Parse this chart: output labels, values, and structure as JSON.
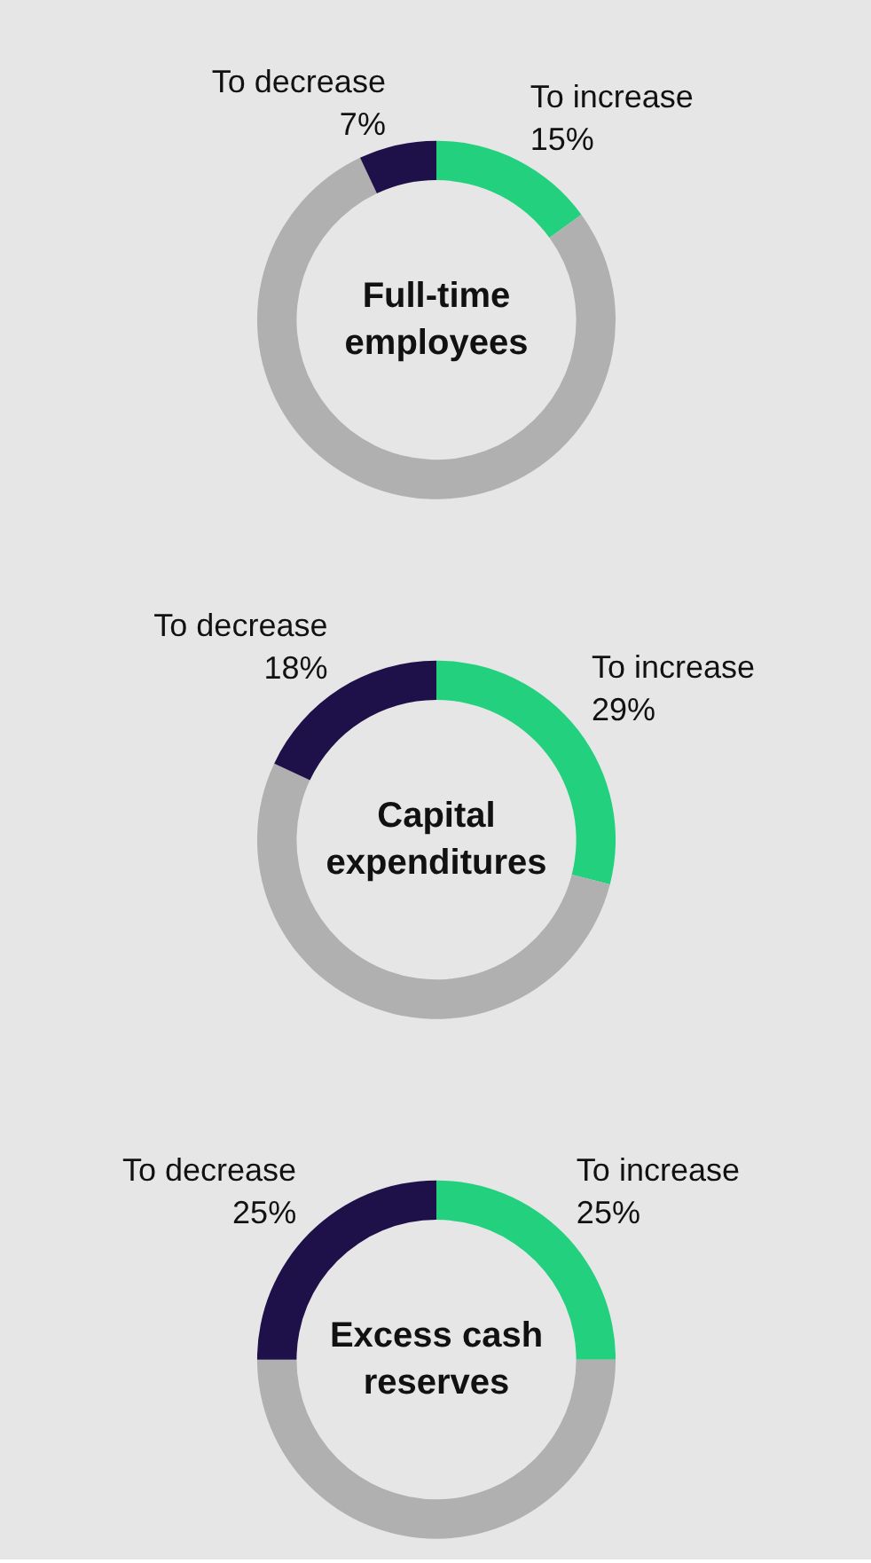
{
  "chart_data": [
    {
      "type": "donut",
      "title": "Full-time employees",
      "categories": [
        "To increase",
        null,
        "To decrease"
      ],
      "values": [
        15,
        78,
        7
      ],
      "colors": [
        "#22d07d",
        "#b0b0b0",
        "#1e1048"
      ],
      "value_labels": [
        "15%",
        null,
        "7%"
      ],
      "legend": false
    },
    {
      "type": "donut",
      "title": "Capital expenditures",
      "categories": [
        "To increase",
        null,
        "To decrease"
      ],
      "values": [
        29,
        53,
        18
      ],
      "colors": [
        "#22d07d",
        "#b0b0b0",
        "#1e1048"
      ],
      "value_labels": [
        "29%",
        null,
        "18%"
      ],
      "legend": false
    },
    {
      "type": "donut",
      "title": "Excess cash reserves",
      "categories": [
        "To increase",
        null,
        "To decrease"
      ],
      "values": [
        25,
        50,
        25
      ],
      "colors": [
        "#22d07d",
        "#b0b0b0",
        "#1e1048"
      ],
      "value_labels": [
        "25%",
        null,
        "25%"
      ],
      "legend": false
    }
  ]
}
